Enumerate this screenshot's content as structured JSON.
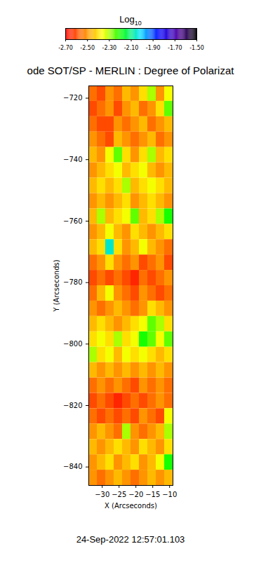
{
  "chart_data": {
    "type": "heatmap",
    "title": "ode SOT/SP - MERLIN : Degree of Polarizat",
    "x_label": "X (Arcseconds)",
    "y_label": "Y (Arcseconds)",
    "xlim": [
      -34,
      -9
    ],
    "xticks": [
      -30,
      -25,
      -20,
      -15,
      -10
    ],
    "ylim": [
      -846,
      -716
    ],
    "yticks": [
      -720,
      -740,
      -760,
      -780,
      -800,
      -820,
      -840
    ],
    "annotations": [
      "24-Sep-2022 12:57:01.103"
    ],
    "colorbar": {
      "label": "Log",
      "label_subscript": "10",
      "range": [
        -2.7,
        -1.5
      ],
      "ticks": [
        {
          "value": -2.7,
          "label": "-2.70"
        },
        {
          "value": -2.5,
          "label": "-2.50"
        },
        {
          "value": -2.3,
          "label": "-2.30"
        },
        {
          "value": -2.1,
          "label": "-2.10"
        },
        {
          "value": -1.9,
          "label": "-1.90"
        },
        {
          "value": -1.7,
          "label": "-1.70"
        },
        {
          "value": -1.5,
          "label": "-1.50"
        }
      ],
      "colors": [
        "#ff0000",
        "#ff7f00",
        "#ffff00",
        "#00ff00",
        "#00e0ff",
        "#0000ff",
        "#5000a0",
        "#000000"
      ]
    },
    "cells": {
      "x_edges": [
        -34,
        -31.5,
        -29,
        -26.5,
        -24,
        -21.5,
        -19,
        -16.5,
        -14,
        -11.5,
        -9
      ],
      "y_edges": [
        -716,
        -721,
        -726,
        -731,
        -736,
        -741,
        -746,
        -751,
        -756,
        -761,
        -766,
        -771,
        -776,
        -781,
        -786,
        -791,
        -796,
        -801,
        -806,
        -811,
        -816,
        -821,
        -826,
        -831,
        -836,
        -841,
        -846
      ],
      "values": [
        [
          -2.55,
          -2.6,
          -2.5,
          -2.55,
          -2.45,
          -2.5,
          -2.4,
          -2.3,
          -2.5,
          -2.35
        ],
        [
          -2.6,
          -2.55,
          -2.5,
          -2.6,
          -2.5,
          -2.45,
          -2.55,
          -2.5,
          -2.4,
          -2.25
        ],
        [
          -2.55,
          -2.6,
          -2.6,
          -2.5,
          -2.55,
          -2.5,
          -2.45,
          -2.55,
          -2.5,
          -2.45
        ],
        [
          -2.5,
          -2.55,
          -2.6,
          -2.45,
          -2.5,
          -2.55,
          -2.5,
          -2.45,
          -2.55,
          -2.5
        ],
        [
          -2.45,
          -2.5,
          -2.35,
          -2.25,
          -2.4,
          -2.5,
          -2.4,
          -2.3,
          -2.45,
          -2.4
        ],
        [
          -2.5,
          -2.45,
          -2.4,
          -2.35,
          -2.45,
          -2.4,
          -2.35,
          -2.45,
          -2.5,
          -2.45
        ],
        [
          -2.45,
          -2.4,
          -2.45,
          -2.4,
          -2.3,
          -2.45,
          -2.4,
          -2.35,
          -2.4,
          -2.45
        ],
        [
          -2.5,
          -2.45,
          -2.5,
          -2.45,
          -2.4,
          -2.5,
          -2.45,
          -2.4,
          -2.45,
          -2.5
        ],
        [
          -2.45,
          -2.3,
          -2.45,
          -2.4,
          -2.35,
          -2.25,
          -2.45,
          -2.4,
          -2.3,
          -2.2
        ],
        [
          -2.5,
          -2.45,
          -2.35,
          -2.45,
          -2.5,
          -2.4,
          -2.45,
          -2.5,
          -2.45,
          -2.4
        ],
        [
          -2.45,
          -2.4,
          -2.05,
          -2.4,
          -2.5,
          -2.45,
          -2.35,
          -2.45,
          -2.5,
          -2.55
        ],
        [
          -2.55,
          -2.5,
          -2.4,
          -2.5,
          -2.55,
          -2.5,
          -2.6,
          -2.55,
          -2.5,
          -2.6
        ],
        [
          -2.6,
          -2.55,
          -2.6,
          -2.55,
          -2.6,
          -2.65,
          -2.55,
          -2.6,
          -2.55,
          -2.5
        ],
        [
          -2.55,
          -2.45,
          -2.35,
          -2.5,
          -2.55,
          -2.6,
          -2.5,
          -2.55,
          -2.6,
          -2.55
        ],
        [
          -2.5,
          -2.55,
          -2.5,
          -2.45,
          -2.5,
          -2.55,
          -2.5,
          -2.4,
          -2.45,
          -2.5
        ],
        [
          -2.45,
          -2.4,
          -2.45,
          -2.5,
          -2.45,
          -2.4,
          -2.35,
          -2.25,
          -2.3,
          -2.4
        ],
        [
          -2.4,
          -2.35,
          -2.4,
          -2.3,
          -2.4,
          -2.35,
          -2.2,
          -2.25,
          -2.35,
          -2.25
        ],
        [
          -2.3,
          -2.4,
          -2.35,
          -2.45,
          -2.35,
          -2.4,
          -2.35,
          -2.4,
          -2.45,
          -2.4
        ],
        [
          -2.45,
          -2.5,
          -2.45,
          -2.5,
          -2.45,
          -2.5,
          -2.45,
          -2.5,
          -2.45,
          -2.5
        ],
        [
          -2.55,
          -2.5,
          -2.55,
          -2.5,
          -2.55,
          -2.6,
          -2.5,
          -2.55,
          -2.5,
          -2.55
        ],
        [
          -2.6,
          -2.55,
          -2.6,
          -2.65,
          -2.6,
          -2.55,
          -2.6,
          -2.55,
          -2.5,
          -2.55
        ],
        [
          -2.55,
          -2.6,
          -2.55,
          -2.6,
          -2.55,
          -2.6,
          -2.5,
          -2.55,
          -2.6,
          -2.35
        ],
        [
          -2.5,
          -2.45,
          -2.5,
          -2.55,
          -2.3,
          -2.5,
          -2.55,
          -2.5,
          -2.45,
          -2.3
        ],
        [
          -2.45,
          -2.5,
          -2.45,
          -2.4,
          -2.45,
          -2.5,
          -2.4,
          -2.45,
          -2.5,
          -2.4
        ],
        [
          -2.5,
          -2.45,
          -2.4,
          -2.5,
          -2.45,
          -2.4,
          -2.5,
          -2.45,
          -2.35,
          -2.2
        ],
        [
          -2.5,
          -2.55,
          -2.5,
          -2.45,
          -2.5,
          -2.55,
          -2.5,
          -2.45,
          -2.5,
          -2.45
        ]
      ]
    }
  }
}
